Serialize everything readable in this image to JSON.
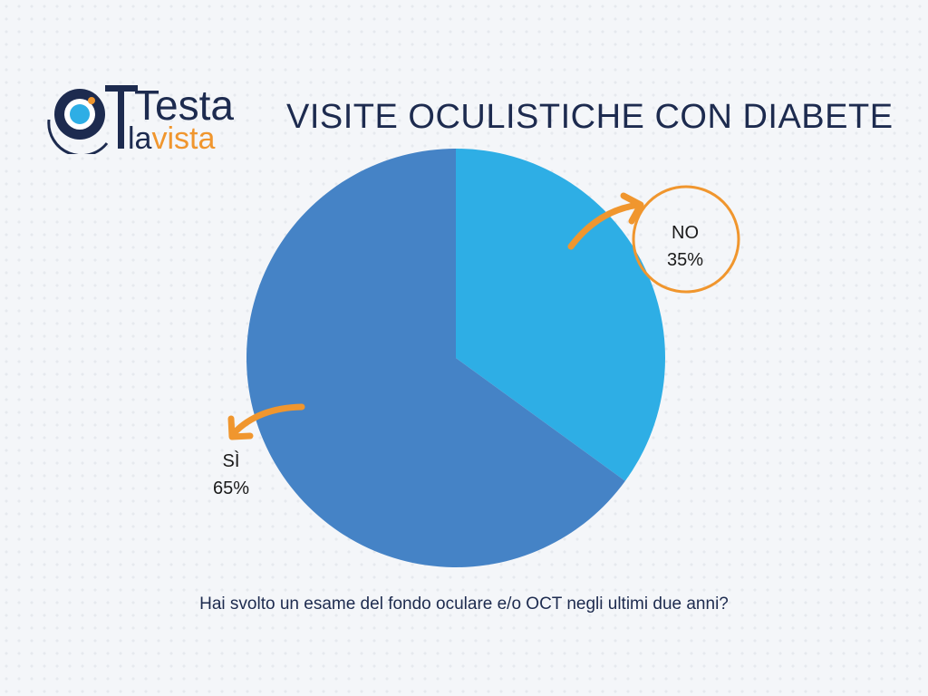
{
  "logo": {
    "text_top": "Testa",
    "text_bottom_a": "la",
    "text_bottom_b": "vista"
  },
  "chart_data": {
    "type": "pie",
    "title": "VISITE OCULISTICHE CON DIABETE",
    "subtitle": "Hai svolto un esame del fondo oculare e/o OCT negli ultimi due anni?",
    "slices": [
      {
        "label": "NO",
        "value": 35,
        "value_label": "35%",
        "color": "#2eaee5"
      },
      {
        "label": "SÌ",
        "value": 65,
        "value_label": "65%",
        "color": "#4583c6"
      }
    ],
    "annotation_color": "#f0962e"
  }
}
